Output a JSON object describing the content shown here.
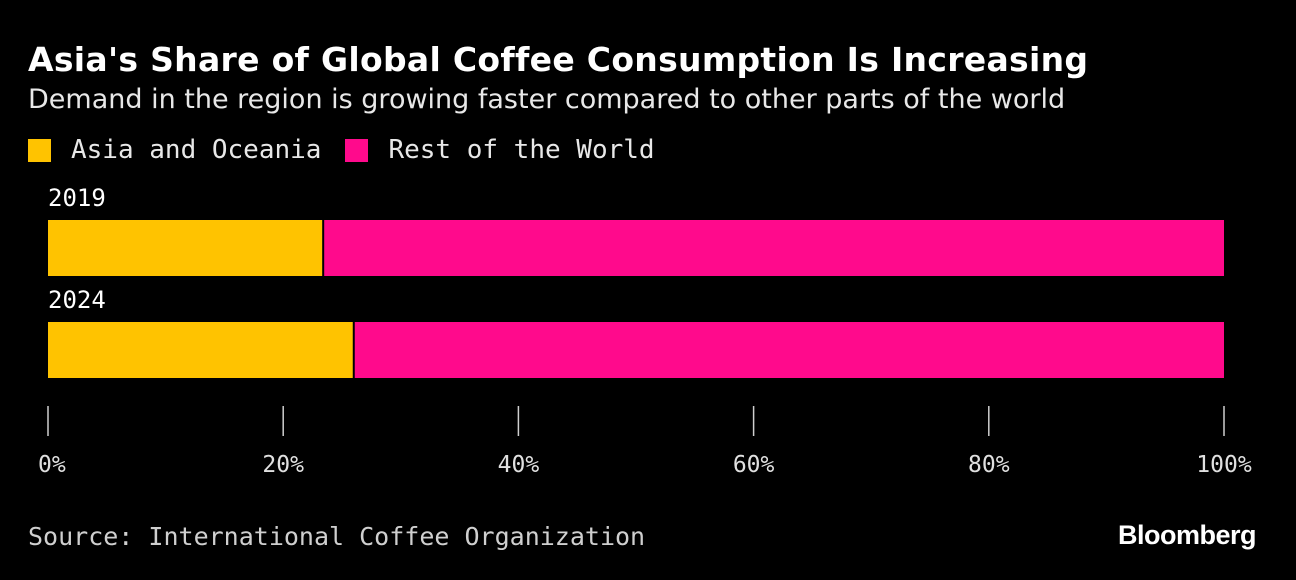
{
  "chart_data": {
    "type": "bar",
    "orientation": "horizontal",
    "stacked": true,
    "title": "Asia's Share of Global Coffee Consumption Is Increasing",
    "subtitle": "Demand in the region is growing faster compared to other parts of the world",
    "categories": [
      "2019",
      "2024"
    ],
    "series": [
      {
        "name": "Asia and Oceania",
        "color": "#FFC300",
        "values": [
          23.4,
          26
        ]
      },
      {
        "name": "Rest of the World",
        "color": "#FF0A8C",
        "values": [
          76.6,
          74
        ]
      }
    ],
    "xlim": [
      0,
      100
    ],
    "xticks": [
      "0%",
      "20%",
      "40%",
      "60%",
      "80%",
      "100%"
    ],
    "xlabel": "",
    "ylabel": "",
    "legend": "top-left"
  },
  "footer": {
    "source": "Source: International Coffee Organization",
    "brand": "Bloomberg"
  }
}
